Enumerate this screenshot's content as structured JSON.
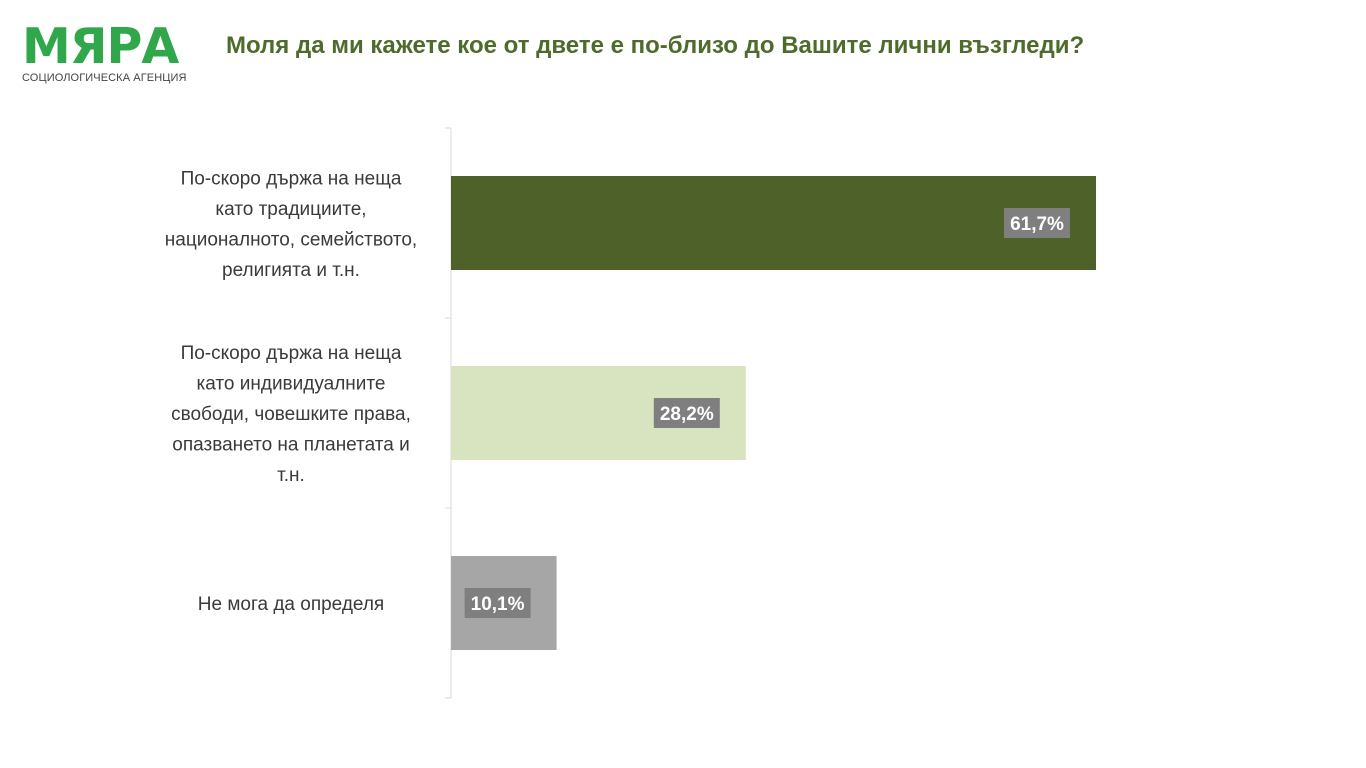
{
  "logo": {
    "name": "МЯРА",
    "tagline": "СОЦИОЛОГИЧЕСКА АГЕНЦИЯ",
    "color": "#2fa74a"
  },
  "header": {
    "title": "Моля да ми кажете кое от двете е по-близо до Вашите лични възгледи?",
    "color": "#4e6b2b"
  },
  "chart_data": {
    "type": "bar",
    "orientation": "horizontal",
    "categories": [
      "По-скоро държа на неща като традициите, националното, семейството, религията и т.н.",
      "По-скоро държа на неща като индивидуалните свободи, човешките права, опазването на планетата и т.н.",
      "Не мога да определя"
    ],
    "category_lines": [
      [
        "По-скоро държа на неща",
        "като традициите,",
        "националното, семейството,",
        "религията и т.н."
      ],
      [
        "По-скоро държа на неща",
        "като индивидуалните",
        "свободи, човешките права,",
        "опазването на планетата и",
        "т.н."
      ],
      [
        "Не мога да определя"
      ]
    ],
    "values": [
      61.7,
      28.2,
      10.1
    ],
    "data_labels": [
      "61,7%",
      "28,2%",
      "10,1%"
    ],
    "bar_colors": [
      "#4e6129",
      "#d8e4bf",
      "#a6a6a6"
    ],
    "label_box_color": "#7f7f7f",
    "unit": "%",
    "xlim": [
      0,
      100
    ],
    "grid": false,
    "legend": "none"
  }
}
